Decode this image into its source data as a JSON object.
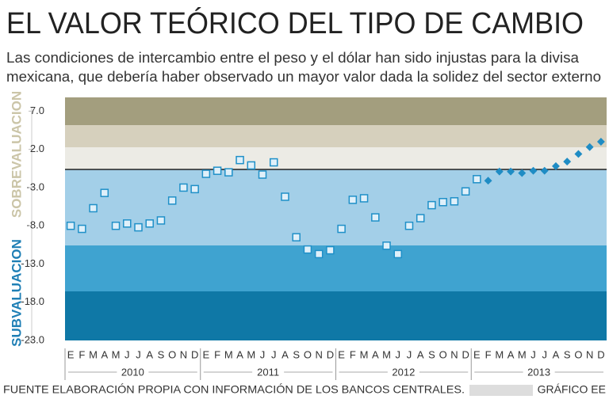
{
  "chart_data": {
    "type": "scatter",
    "title": "EL VALOR TEÓRICO DEL TIPO DE CAMBIO",
    "subtitle": [
      "Las condiciones de intercambio entre el peso y el dólar han sido injustas para la divisa",
      "mexicana, que debería haber observado un mayor valor dada la solidez del sector externo"
    ],
    "annotations": [
      "SOBREVALUACION",
      "SUBVALUACION"
    ],
    "categories": [
      "E",
      "F",
      "M",
      "A",
      "M",
      "J",
      "J",
      "A",
      "S",
      "O",
      "N",
      "D",
      "E",
      "F",
      "M",
      "A",
      "M",
      "J",
      "J",
      "A",
      "S",
      "O",
      "N",
      "D",
      "E",
      "F",
      "M",
      "A",
      "M",
      "J",
      "J",
      "A",
      "S",
      "O",
      "N",
      "D",
      "E",
      "F",
      "M",
      "A",
      "M",
      "J",
      "J",
      "A",
      "S",
      "O",
      "N",
      "D"
    ],
    "years": [
      "2010",
      "2011",
      "2012",
      "2013"
    ],
    "series": [
      {
        "color": "#1f90c8",
        "marker": "square",
        "values": [
          -8.0,
          -8.4,
          -5.7,
          -3.7,
          -8.0,
          -7.7,
          -8.2,
          -7.7,
          -7.3,
          -4.7,
          -3.0,
          -3.2,
          -1.2,
          -0.8,
          -1.0,
          0.6,
          -0.1,
          -1.3,
          0.3,
          -4.2,
          -9.5,
          -11.1,
          -11.7,
          -11.2,
          -8.4,
          -4.6,
          -4.4,
          -6.9,
          -10.6,
          -11.7,
          -8.0,
          -7.0,
          -5.3,
          -4.9,
          -4.8,
          -3.5,
          -1.9,
          null,
          null,
          null,
          null,
          null,
          null,
          null,
          null,
          null,
          null,
          null
        ]
      },
      {
        "color": "#1f8cc4",
        "marker": "diamond",
        "values": [
          null,
          null,
          null,
          null,
          null,
          null,
          null,
          null,
          null,
          null,
          null,
          null,
          null,
          null,
          null,
          null,
          null,
          null,
          null,
          null,
          null,
          null,
          null,
          null,
          null,
          null,
          null,
          null,
          null,
          null,
          null,
          null,
          null,
          null,
          null,
          null,
          null,
          -2.1,
          -0.9,
          -0.9,
          -1.1,
          -0.8,
          -0.8,
          -0.2,
          0.4,
          1.4,
          2.3,
          3.0
        ]
      }
    ],
    "ylim": [
      -23,
      8.8
    ],
    "yticks": [
      {
        "value": -23,
        "label": "-23.0"
      },
      {
        "value": -18,
        "label": "-18.0"
      },
      {
        "value": -13,
        "label": "-13.0"
      },
      {
        "value": -8,
        "label": "-8.0"
      },
      {
        "value": -3,
        "label": "-3.0"
      },
      {
        "value": 2,
        "label": "2.0"
      },
      {
        "value": 7,
        "label": "7.0"
      }
    ],
    "footer": {
      "source": "FUENTE ELABORACIÓN PROPIA CON INFORMACIÓN DE LOS BANCOS CENTRALES.",
      "credit": "GRÁFICO EE"
    }
  }
}
